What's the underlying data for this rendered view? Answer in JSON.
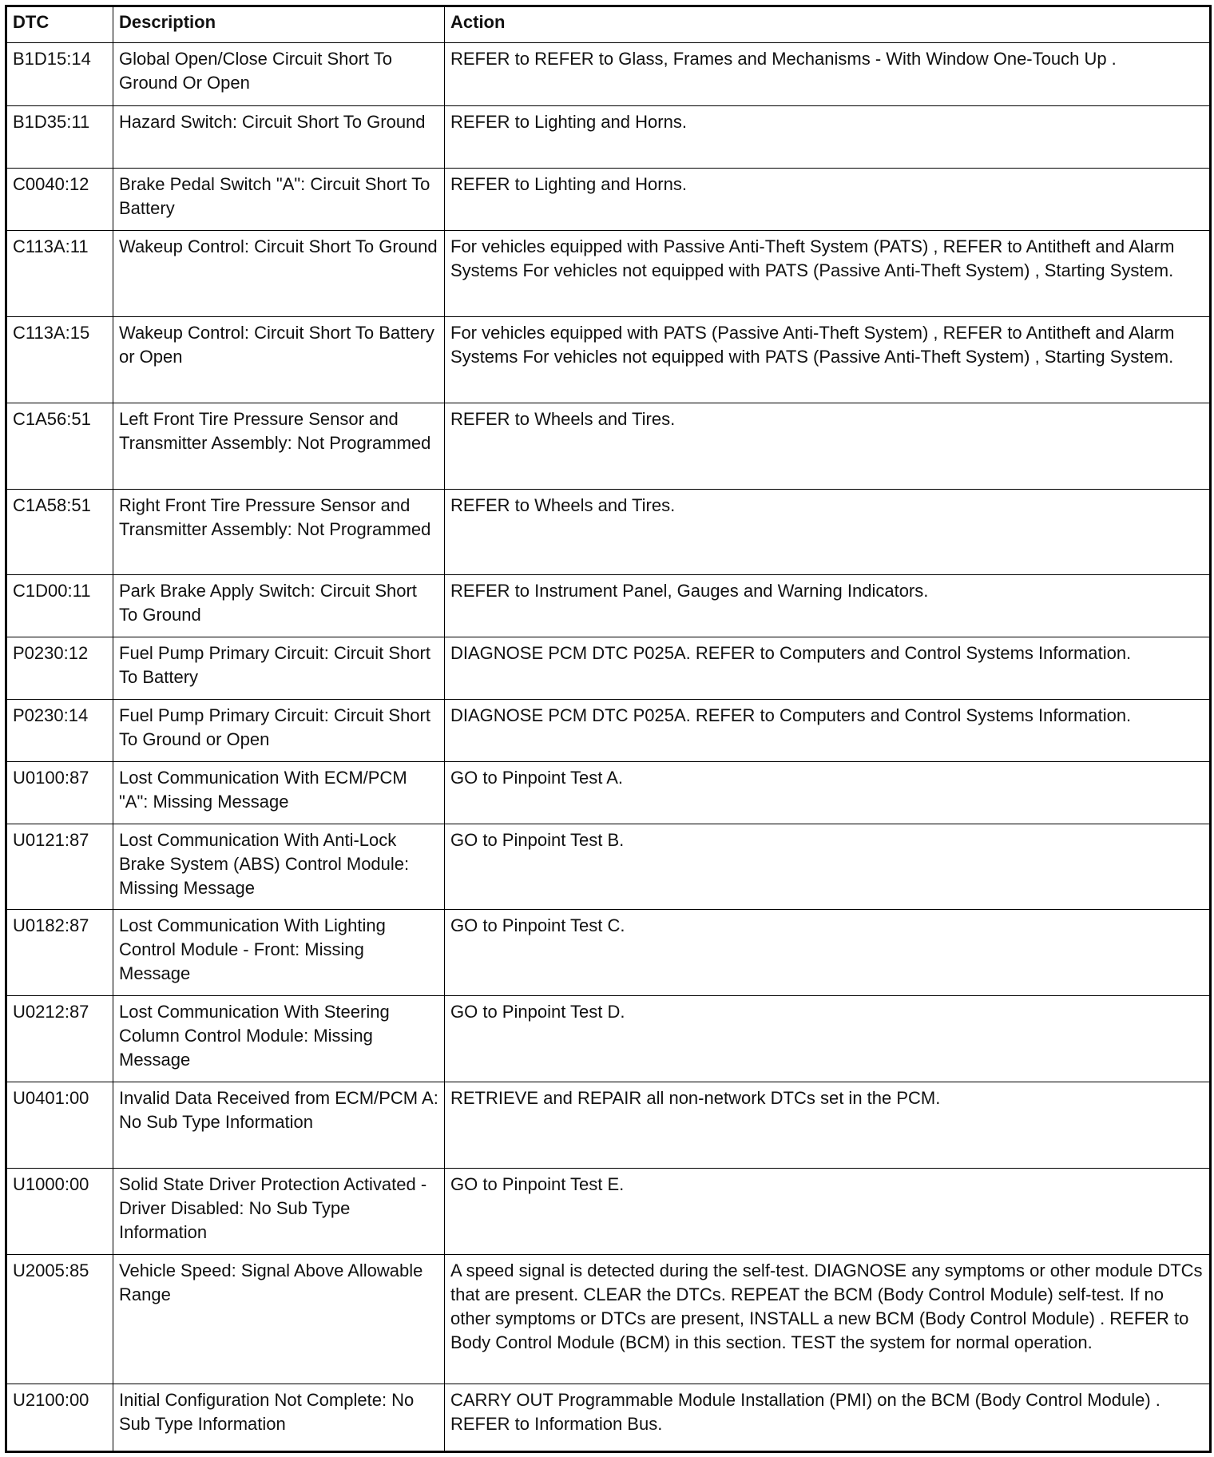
{
  "table": {
    "columns": [
      "DTC",
      "Description",
      "Action"
    ],
    "rows": [
      [
        "B1D15:14",
        "Global Open/Close Circuit Short To Ground Or Open",
        "REFER to REFER to Glass, Frames and Mechanisms - With Window One-Touch Up ."
      ],
      [
        "B1D35:11",
        "Hazard Switch: Circuit Short To Ground",
        "REFER to Lighting and Horns."
      ],
      [
        "C0040:12",
        "Brake Pedal Switch \"A\": Circuit Short To Battery",
        "REFER to Lighting and Horns."
      ],
      [
        "C113A:11",
        "Wakeup Control: Circuit Short To Ground",
        "For vehicles equipped with Passive Anti-Theft System (PATS) , REFER to Antitheft and Alarm Systems For vehicles not equipped with PATS (Passive Anti-Theft System) , Starting System."
      ],
      [
        "C113A:15",
        "Wakeup Control: Circuit Short To Battery or Open",
        "For vehicles equipped with PATS (Passive Anti-Theft System) , REFER to Antitheft and Alarm Systems For vehicles not equipped with PATS (Passive Anti-Theft System) , Starting System."
      ],
      [
        "C1A56:51",
        "Left Front Tire Pressure Sensor and Transmitter Assembly: Not Programmed",
        "REFER to Wheels and Tires."
      ],
      [
        "C1A58:51",
        "Right Front Tire Pressure Sensor and Transmitter Assembly: Not Programmed",
        "REFER to Wheels and Tires."
      ],
      [
        "C1D00:11",
        "Park Brake Apply Switch: Circuit Short To Ground",
        "REFER to Instrument Panel, Gauges and Warning Indicators."
      ],
      [
        "P0230:12",
        "Fuel Pump Primary Circuit: Circuit Short To Battery",
        "DIAGNOSE PCM DTC P025A. REFER to Computers and Control Systems Information."
      ],
      [
        "P0230:14",
        "Fuel Pump Primary Circuit: Circuit Short To Ground or Open",
        "DIAGNOSE PCM DTC P025A. REFER to Computers and Control Systems Information."
      ],
      [
        "U0100:87",
        "Lost Communication With ECM/PCM \"A\": Missing Message",
        "GO to Pinpoint Test A."
      ],
      [
        "U0121:87",
        "Lost Communication With Anti-Lock Brake System (ABS) Control Module: Missing Message",
        "GO to Pinpoint Test B."
      ],
      [
        "U0182:87",
        "Lost Communication With Lighting Control Module - Front: Missing Message",
        "GO to Pinpoint Test C."
      ],
      [
        "U0212:87",
        "Lost Communication With Steering Column Control Module: Missing Message",
        "GO to Pinpoint Test D."
      ],
      [
        "U0401:00",
        "Invalid Data Received from ECM/PCM A: No Sub Type Information",
        "RETRIEVE and REPAIR all non-network DTCs set in the PCM."
      ],
      [
        "U1000:00",
        "Solid State Driver Protection Activated - Driver Disabled: No Sub Type Information",
        "GO to Pinpoint Test E."
      ],
      [
        "U2005:85",
        "Vehicle Speed: Signal Above Allowable Range",
        "A speed signal is detected during the self-test. DIAGNOSE any symptoms or other module DTCs that are present. CLEAR the DTCs. REPEAT the BCM (Body Control Module) self-test. If no other symptoms or DTCs are present, INSTALL a new BCM (Body Control Module) . REFER to Body Control Module (BCM) in this section. TEST the system for normal operation."
      ],
      [
        "U2100:00",
        "Initial Configuration Not Complete: No Sub Type Information",
        "CARRY OUT Programmable Module Installation (PMI) on the BCM (Body Control Module) . REFER to Information Bus."
      ]
    ]
  }
}
